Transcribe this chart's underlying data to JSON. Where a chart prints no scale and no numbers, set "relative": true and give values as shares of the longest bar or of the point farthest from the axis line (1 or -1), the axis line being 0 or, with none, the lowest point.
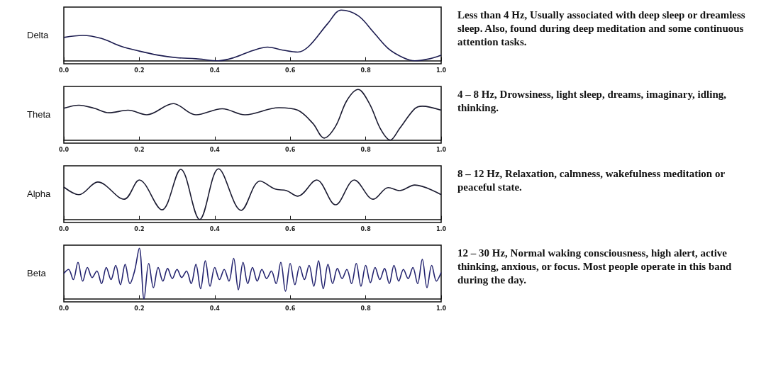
{
  "chart_data": [
    {
      "type": "line",
      "ylabel": "Delta",
      "relative": true,
      "xlim": [
        0,
        1
      ],
      "xticks": [
        {
          "value": 0,
          "label": "0.0"
        },
        {
          "value": 0.2,
          "label": "0.2"
        },
        {
          "value": 0.4,
          "label": "0.4"
        },
        {
          "value": 0.6,
          "label": "0.6"
        },
        {
          "value": 0.8,
          "label": "0.8"
        },
        {
          "value": 1,
          "label": "1.0"
        }
      ],
      "annotations": [
        "Less than 4 Hz, Usually associated with deep sleep or dreamless sleep. Also, found during deep meditation and some continuous attention tasks."
      ],
      "series": [
        {
          "color": "#1c1c50",
          "x": [
            0,
            0.05,
            0.1,
            0.15,
            0.2,
            0.25,
            0.3,
            0.35,
            0.41,
            0.45,
            0.5,
            0.54,
            0.58,
            0.62,
            0.65,
            0.7,
            0.735,
            0.78,
            0.82,
            0.86,
            0.9,
            0.93,
            0.97,
            1
          ],
          "values": [
            0.46,
            0.5,
            0.44,
            0.29,
            0.19,
            0.11,
            0.06,
            0.04,
            0,
            0.06,
            0.2,
            0.27,
            0.21,
            0.17,
            0.29,
            0.74,
            1,
            0.89,
            0.57,
            0.24,
            0.06,
            0,
            0.04,
            0.11
          ]
        }
      ]
    },
    {
      "type": "line",
      "ylabel": "Theta",
      "relative": true,
      "xlim": [
        0,
        1
      ],
      "xticks": [
        {
          "value": 0,
          "label": "0.0"
        },
        {
          "value": 0.2,
          "label": "0.2"
        },
        {
          "value": 0.4,
          "label": "0.4"
        },
        {
          "value": 0.6,
          "label": "0.6"
        },
        {
          "value": 0.8,
          "label": "0.8"
        },
        {
          "value": 1,
          "label": "1.0"
        }
      ],
      "annotations": [
        "4 – 8 Hz, Drowsiness, light sleep, dreams, imaginary, idling, thinking."
      ],
      "series": [
        {
          "color": "#1a1a30",
          "x": [
            0,
            0.04,
            0.08,
            0.12,
            0.17,
            0.22,
            0.29,
            0.35,
            0.42,
            0.48,
            0.57,
            0.62,
            0.66,
            0.69,
            0.72,
            0.75,
            0.78,
            0.81,
            0.84,
            0.865,
            0.89,
            0.93,
            0.95,
            1
          ],
          "values": [
            0.63,
            0.69,
            0.63,
            0.54,
            0.59,
            0.5,
            0.72,
            0.5,
            0.62,
            0.5,
            0.64,
            0.59,
            0.33,
            0.04,
            0.27,
            0.78,
            1,
            0.72,
            0.21,
            0,
            0.23,
            0.62,
            0.67,
            0.59
          ]
        }
      ]
    },
    {
      "type": "line",
      "ylabel": "Alpha",
      "relative": true,
      "xlim": [
        0,
        1
      ],
      "xticks": [
        {
          "value": 0,
          "label": "0.0"
        },
        {
          "value": 0.2,
          "label": "0.2"
        },
        {
          "value": 0.4,
          "label": "0.4"
        },
        {
          "value": 0.6,
          "label": "0.6"
        },
        {
          "value": 0.8,
          "label": "0.8"
        },
        {
          "value": 1,
          "label": "1.0"
        }
      ],
      "annotations": [
        "8 – 12 Hz, Relaxation, calmness, wakefulness meditation or peaceful state."
      ],
      "series": [
        {
          "color": "#1a1a30",
          "x": [
            0,
            0.04,
            0.09,
            0.16,
            0.2,
            0.26,
            0.31,
            0.36,
            0.41,
            0.47,
            0.52,
            0.56,
            0.59,
            0.62,
            0.67,
            0.72,
            0.77,
            0.82,
            0.86,
            0.89,
            0.93,
            1
          ],
          "values": [
            0.64,
            0.49,
            0.74,
            0.4,
            0.78,
            0.19,
            0.99,
            0,
            1,
            0.18,
            0.76,
            0.6,
            0.57,
            0.46,
            0.78,
            0.29,
            0.78,
            0.4,
            0.63,
            0.57,
            0.68,
            0.49
          ]
        }
      ]
    },
    {
      "type": "line",
      "ylabel": "Beta",
      "relative": true,
      "xlim": [
        0,
        1
      ],
      "xticks": [
        {
          "value": 0,
          "label": "0.0"
        },
        {
          "value": 0.2,
          "label": "0.2"
        },
        {
          "value": 0.4,
          "label": "0.4"
        },
        {
          "value": 0.6,
          "label": "0.6"
        },
        {
          "value": 0.8,
          "label": "0.8"
        },
        {
          "value": 1,
          "label": "1.0"
        }
      ],
      "annotations": [
        "12 – 30 Hz, Normal waking consciousness, high alert, active thinking, anxious, or focus. Most people operate in this band during the day."
      ],
      "series": [
        {
          "color": "#22226e",
          "x": [
            0,
            0.0125,
            0.025,
            0.0375,
            0.05,
            0.0625,
            0.075,
            0.0875,
            0.1,
            0.1125,
            0.125,
            0.1375,
            0.15,
            0.1625,
            0.175,
            0.1875,
            0.2,
            0.2125,
            0.225,
            0.2375,
            0.25,
            0.2625,
            0.275,
            0.2875,
            0.3,
            0.3125,
            0.325,
            0.3375,
            0.35,
            0.3625,
            0.375,
            0.3875,
            0.4,
            0.4125,
            0.425,
            0.4375,
            0.45,
            0.4625,
            0.475,
            0.4875,
            0.5,
            0.5125,
            0.525,
            0.5375,
            0.55,
            0.5625,
            0.575,
            0.5875,
            0.6,
            0.6125,
            0.625,
            0.6375,
            0.65,
            0.6625,
            0.675,
            0.6875,
            0.7,
            0.7125,
            0.725,
            0.7375,
            0.75,
            0.7625,
            0.775,
            0.7875,
            0.8,
            0.8125,
            0.825,
            0.8375,
            0.85,
            0.8625,
            0.875,
            0.8875,
            0.9,
            0.9125,
            0.925,
            0.9375,
            0.95,
            0.9625,
            0.975,
            0.9875,
            1
          ],
          "values": [
            0.5,
            0.58,
            0.38,
            0.72,
            0.35,
            0.62,
            0.42,
            0.55,
            0.3,
            0.62,
            0.38,
            0.66,
            0.28,
            0.68,
            0.3,
            0.55,
            1,
            0,
            0.7,
            0.22,
            0.62,
            0.35,
            0.6,
            0.4,
            0.58,
            0.42,
            0.55,
            0.3,
            0.68,
            0.2,
            0.75,
            0.25,
            0.62,
            0.38,
            0.58,
            0.35,
            0.8,
            0.18,
            0.72,
            0.3,
            0.62,
            0.35,
            0.58,
            0.4,
            0.55,
            0.3,
            0.72,
            0.15,
            0.7,
            0.28,
            0.64,
            0.38,
            0.66,
            0.25,
            0.75,
            0.2,
            0.68,
            0.3,
            0.6,
            0.4,
            0.58,
            0.3,
            0.7,
            0.25,
            0.66,
            0.32,
            0.62,
            0.38,
            0.6,
            0.3,
            0.66,
            0.35,
            0.58,
            0.4,
            0.62,
            0.3,
            0.78,
            0.22,
            0.66,
            0.35,
            0.52
          ]
        }
      ]
    }
  ]
}
